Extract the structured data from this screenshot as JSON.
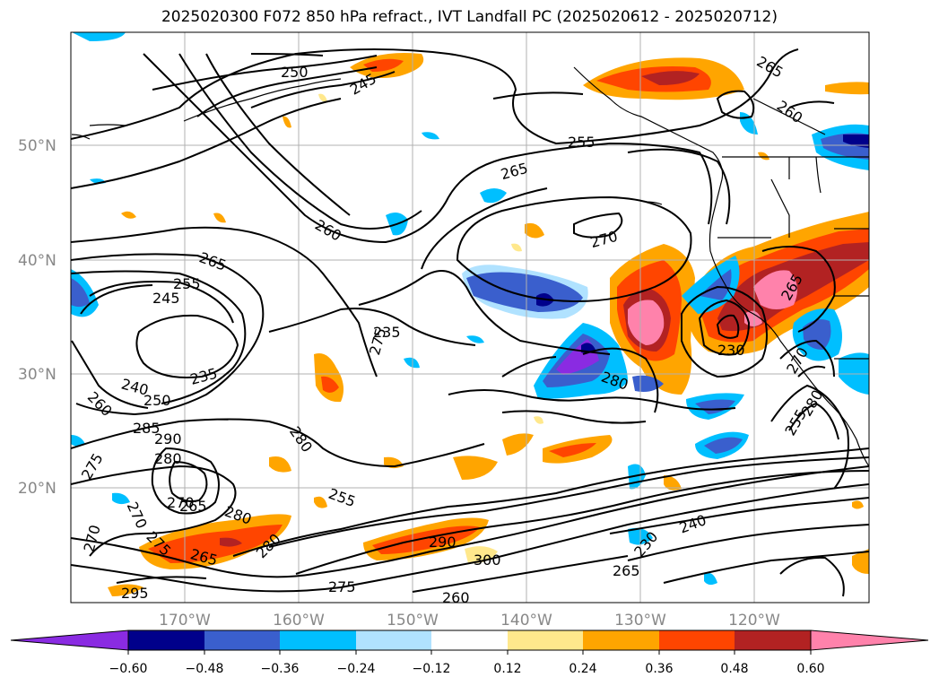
{
  "title": "2025020300 F072 850 hPa refract., IVT Landfall PC (2025020612 - 2025020712)",
  "map": {
    "lat_labels": [
      "50°N",
      "40°N",
      "30°N",
      "20°N"
    ],
    "lon_labels": [
      "170°W",
      "160°W",
      "150°W",
      "140°W",
      "130°W",
      "120°W"
    ],
    "contour_labels": [
      "250",
      "245",
      "255",
      "265",
      "265",
      "260",
      "260",
      "270",
      "265",
      "255",
      "245",
      "275",
      "235",
      "240",
      "250",
      "260",
      "285",
      "290",
      "280",
      "275",
      "270",
      "265",
      "280",
      "270",
      "275",
      "280",
      "265",
      "270",
      "255",
      "280",
      "290",
      "300",
      "295",
      "275",
      "260",
      "265",
      "230",
      "240",
      "235",
      "280",
      "230",
      "265",
      "270",
      "255",
      "280"
    ]
  },
  "colorbar": {
    "tick_labels": [
      "−0.60",
      "−0.48",
      "−0.36",
      "−0.24",
      "−0.12",
      "0.12",
      "0.24",
      "0.36",
      "0.48",
      "0.60"
    ],
    "colors": [
      "#8a2be2",
      "#00008b",
      "#3a5fcd",
      "#00bfff",
      "#b0e2ff",
      "#ffffff",
      "#ffe88c",
      "#ffa500",
      "#ff4500",
      "#b22222",
      "#ff82ab"
    ]
  }
}
